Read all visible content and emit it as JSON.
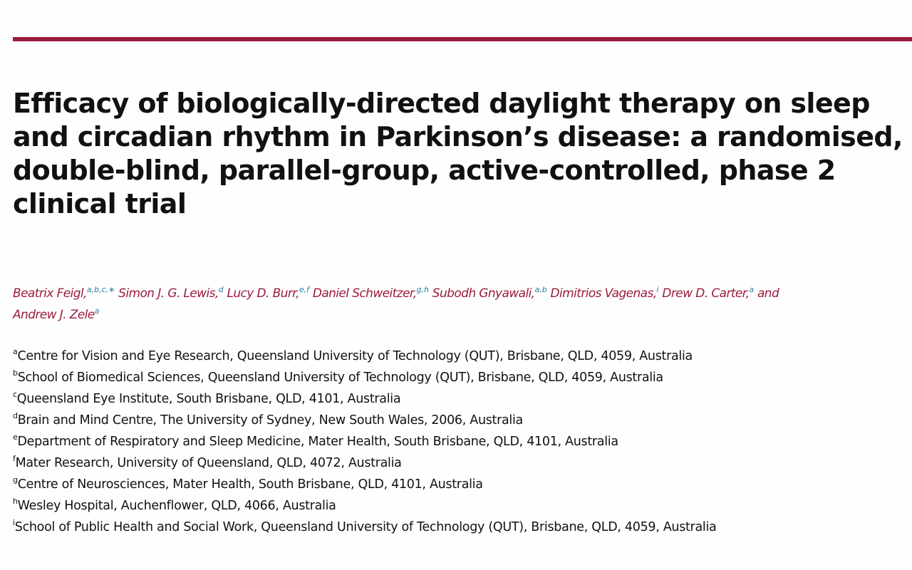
{
  "header": {
    "rule_color": "#9b1b3c"
  },
  "article": {
    "title": "Efficacy of biologically-directed daylight therapy on sleep and circadian rhythm in Parkinson’s disease: a randomised, double-blind, parallel-group, active-controlled, phase 2 clinical trial",
    "authors": [
      {
        "name": "Beatrix Feigl,",
        "sup": "a,b,c,∗"
      },
      {
        "name": "Simon J. G. Lewis,",
        "sup": "d"
      },
      {
        "name": "Lucy D. Burr,",
        "sup": "e,f"
      },
      {
        "name": "Daniel Schweitzer,",
        "sup": "g,h"
      },
      {
        "name": "Subodh Gnyawali,",
        "sup": "a,b"
      },
      {
        "name": "Dimitrios Vagenas,",
        "sup": "i"
      },
      {
        "name": "Drew D. Carter,",
        "sup": "a"
      },
      {
        "name": "and",
        "sup": ""
      },
      {
        "name": "Andrew J. Zele",
        "sup": "a"
      }
    ],
    "affiliations": [
      {
        "key": "a",
        "text": "Centre for Vision and Eye Research, Queensland University of Technology (QUT), Brisbane, QLD, 4059, Australia"
      },
      {
        "key": "b",
        "text": "School of Biomedical Sciences, Queensland University of Technology (QUT), Brisbane, QLD, 4059, Australia"
      },
      {
        "key": "c",
        "text": "Queensland Eye Institute, South Brisbane, QLD, 4101, Australia"
      },
      {
        "key": "d",
        "text": "Brain and Mind Centre, The University of Sydney, New South Wales, 2006, Australia"
      },
      {
        "key": "e",
        "text": "Department of Respiratory and Sleep Medicine, Mater Health, South Brisbane, QLD, 4101, Australia"
      },
      {
        "key": "f",
        "text": "Mater Research, University of Queensland, QLD, 4072, Australia"
      },
      {
        "key": "g",
        "text": "Centre of Neurosciences, Mater Health, South Brisbane, QLD, 4101, Australia"
      },
      {
        "key": "h",
        "text": "Wesley Hospital, Auchenflower, QLD, 4066, Australia"
      },
      {
        "key": "i",
        "text": "School of Public Health and Social Work, Queensland University of Technology (QUT), Brisbane, QLD, 4059, Australia"
      }
    ]
  }
}
